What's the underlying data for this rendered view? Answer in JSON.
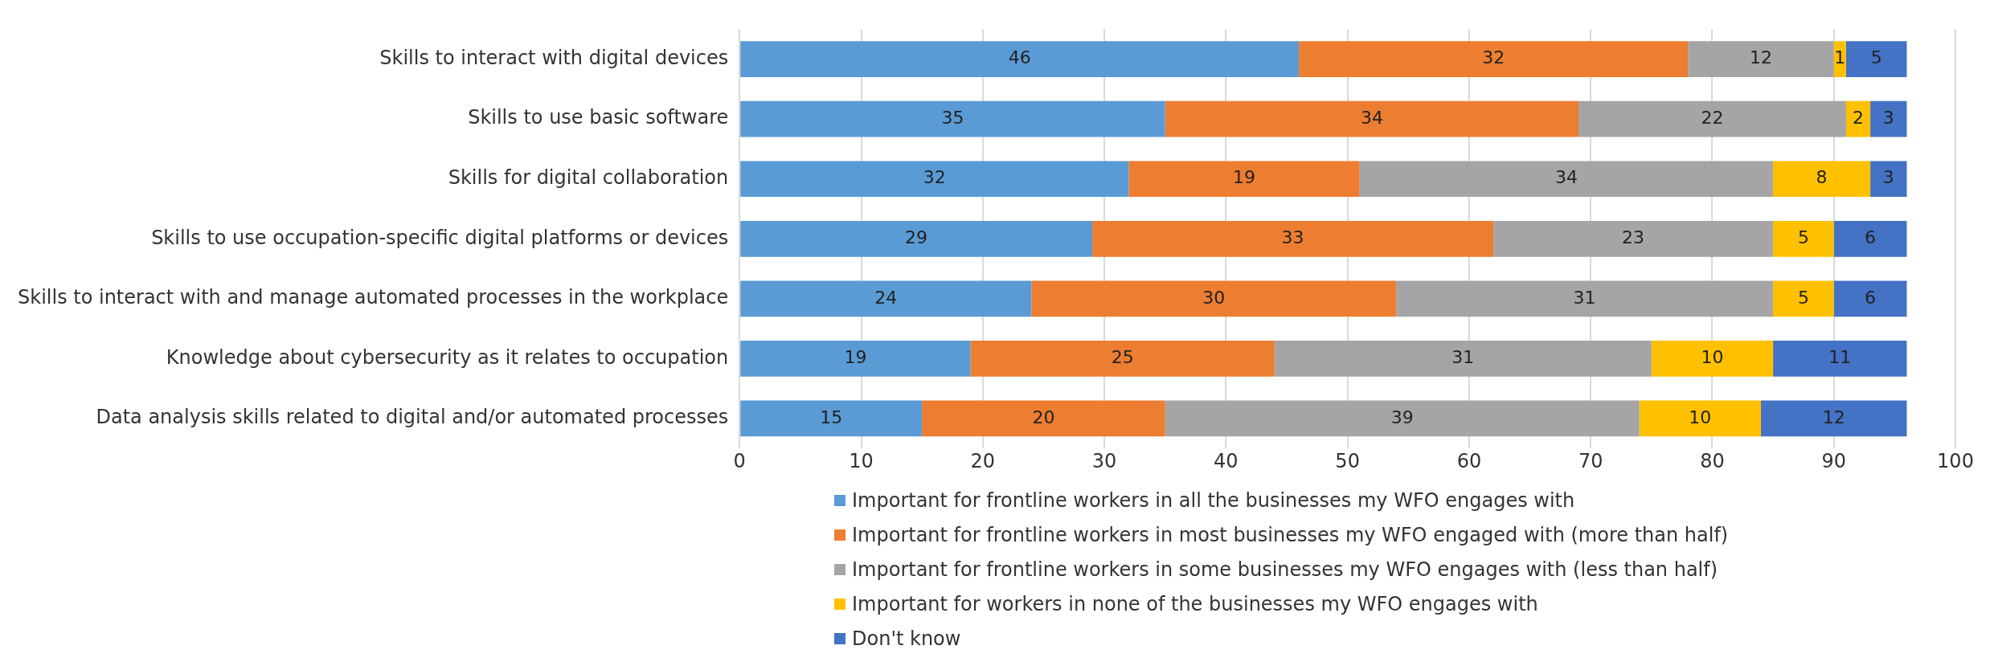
{
  "chart_data": {
    "type": "bar",
    "orientation": "horizontal",
    "stacked": true,
    "data_labels": true,
    "grid": "x",
    "legend": "bottom",
    "categories": [
      "Skills to interact with digital devices",
      "Skills to use basic software",
      "Skills for digital collaboration",
      "Skills to use occupation-specific digital platforms or devices",
      "Skills to interact with and manage automated processes in the workplace",
      "Knowledge about cybersecurity as it relates to occupation",
      "Data analysis skills related to digital and/or automated processes"
    ],
    "series": [
      {
        "name": "Important for frontline workers in all the businesses my WFO engages with",
        "color": "#5b9bd5",
        "values": [
          46,
          35,
          32,
          29,
          24,
          19,
          15
        ]
      },
      {
        "name": "Important for frontline workers in most businesses my WFO engaged with (more than half)",
        "color": "#ed7d31",
        "values": [
          32,
          34,
          19,
          33,
          30,
          25,
          20
        ]
      },
      {
        "name": "Important for frontline workers in some businesses my WFO engages with (less than half)",
        "color": "#a5a5a5",
        "values": [
          12,
          22,
          34,
          23,
          31,
          31,
          39
        ]
      },
      {
        "name": "Important for workers in none of the businesses my WFO engages with",
        "color": "#ffc000",
        "values": [
          1,
          2,
          8,
          5,
          5,
          10,
          10
        ]
      },
      {
        "name": "Don't know",
        "color": "#4472c4",
        "values": [
          5,
          3,
          3,
          6,
          6,
          11,
          12
        ]
      }
    ],
    "xlim": [
      0,
      100
    ],
    "xticks": [
      0,
      10,
      20,
      30,
      40,
      50,
      60,
      70,
      80,
      90,
      100
    ]
  }
}
